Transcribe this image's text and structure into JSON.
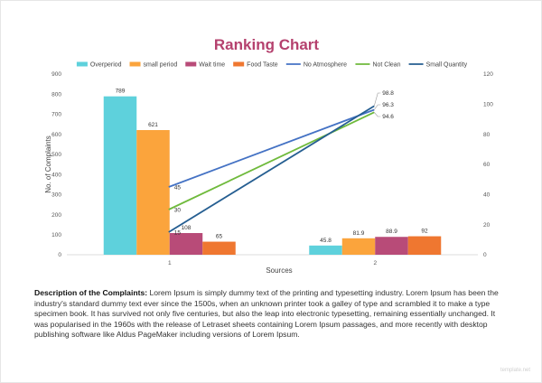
{
  "chart_data": {
    "type": "bar",
    "title": "Ranking Chart",
    "xlabel": "Sources",
    "ylabel": "No. of Complaints",
    "categories": [
      "1",
      "2"
    ],
    "ylim": [
      0,
      900
    ],
    "y_ticks": [
      0,
      100,
      200,
      300,
      400,
      500,
      600,
      700,
      800,
      900
    ],
    "y2lim": [
      0,
      120
    ],
    "y2_ticks": [
      0,
      20,
      40,
      60,
      80,
      100,
      120
    ],
    "legend_position": "top",
    "grid": false,
    "series": [
      {
        "name": "Overperiod",
        "kind": "bar",
        "color": "#5ed1dc",
        "values": [
          789,
          45.8
        ],
        "labels": [
          "789",
          "45.8"
        ]
      },
      {
        "name": "small period",
        "kind": "bar",
        "color": "#fba43c",
        "values": [
          621,
          81.9
        ],
        "labels": [
          "621",
          "81.9"
        ]
      },
      {
        "name": "Wait time",
        "kind": "bar",
        "color": "#b84b78",
        "values": [
          108,
          88.9
        ],
        "labels": [
          "108",
          "88.9"
        ]
      },
      {
        "name": "Food Taste",
        "kind": "bar",
        "color": "#ef7730",
        "values": [
          65,
          92
        ],
        "labels": [
          "65",
          "92"
        ]
      },
      {
        "name": "No Atmosphere",
        "kind": "line",
        "axis": "secondary",
        "color": "#4472c4",
        "values": [
          45,
          96.3
        ],
        "labels": [
          "45",
          "96.3"
        ]
      },
      {
        "name": "Not Clean",
        "kind": "line",
        "axis": "secondary",
        "color": "#6fba3c",
        "values": [
          30,
          94.6
        ],
        "labels": [
          "30",
          "94.6"
        ]
      },
      {
        "name": "Small Quantity",
        "kind": "line",
        "axis": "secondary",
        "color": "#255e91",
        "values": [
          15,
          98.8
        ],
        "labels": [
          "15",
          "98.8"
        ]
      }
    ]
  },
  "description": {
    "heading": "Description of the Complaints:",
    "text": " Lorem Ipsum is simply dummy text of the printing and typesetting industry. Lorem Ipsum has been the industry's standard dummy text ever since the 1500s, when an unknown printer took a galley of type and scrambled it to make a type specimen book. It has survived not only five centuries, but also the leap into electronic typesetting, remaining essentially unchanged. It was popularised in the 1960s with the release of Letraset sheets containing Lorem Ipsum passages, and more recently with desktop publishing software like Aldus PageMaker including versions of Lorem Ipsum."
  },
  "footer": {
    "watermark": "template.net"
  }
}
